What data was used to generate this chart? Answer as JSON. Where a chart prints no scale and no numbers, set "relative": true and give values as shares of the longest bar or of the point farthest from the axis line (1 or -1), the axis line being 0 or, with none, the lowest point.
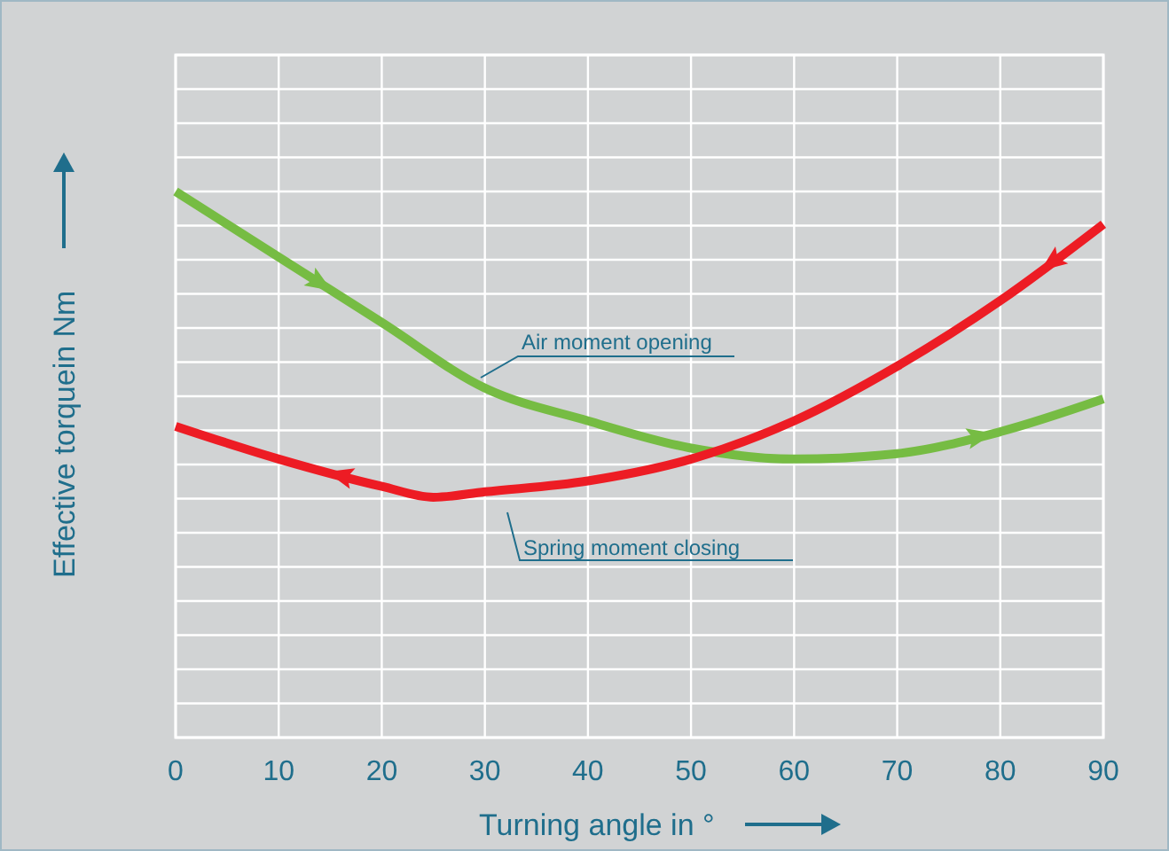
{
  "chart_data": {
    "type": "line",
    "relative": true,
    "xlabel": "Turning angle in °",
    "ylabel": "Effective torquein Nm",
    "xlim": [
      0,
      90
    ],
    "xticks": [
      0,
      10,
      20,
      30,
      40,
      50,
      60,
      70,
      80,
      90
    ],
    "grid": true,
    "x": [
      0,
      10,
      20,
      30,
      40,
      50,
      60,
      70,
      80,
      90
    ],
    "series": [
      {
        "name": "Air moment opening",
        "color": "#76bc43",
        "values": [
          1,
          0.88,
          0.76,
          0.64,
          0.58,
          0.53,
          0.51,
          0.52,
          0.56,
          0.62
        ]
      },
      {
        "name": "Spring moment closing",
        "color": "#ed1c24",
        "x": [
          0,
          10,
          20,
          25,
          30,
          40,
          50,
          60,
          70,
          80,
          90
        ],
        "values": [
          0.57,
          0.51,
          0.46,
          0.44,
          0.45,
          0.47,
          0.51,
          0.58,
          0.68,
          0.8,
          0.94
        ]
      }
    ]
  }
}
